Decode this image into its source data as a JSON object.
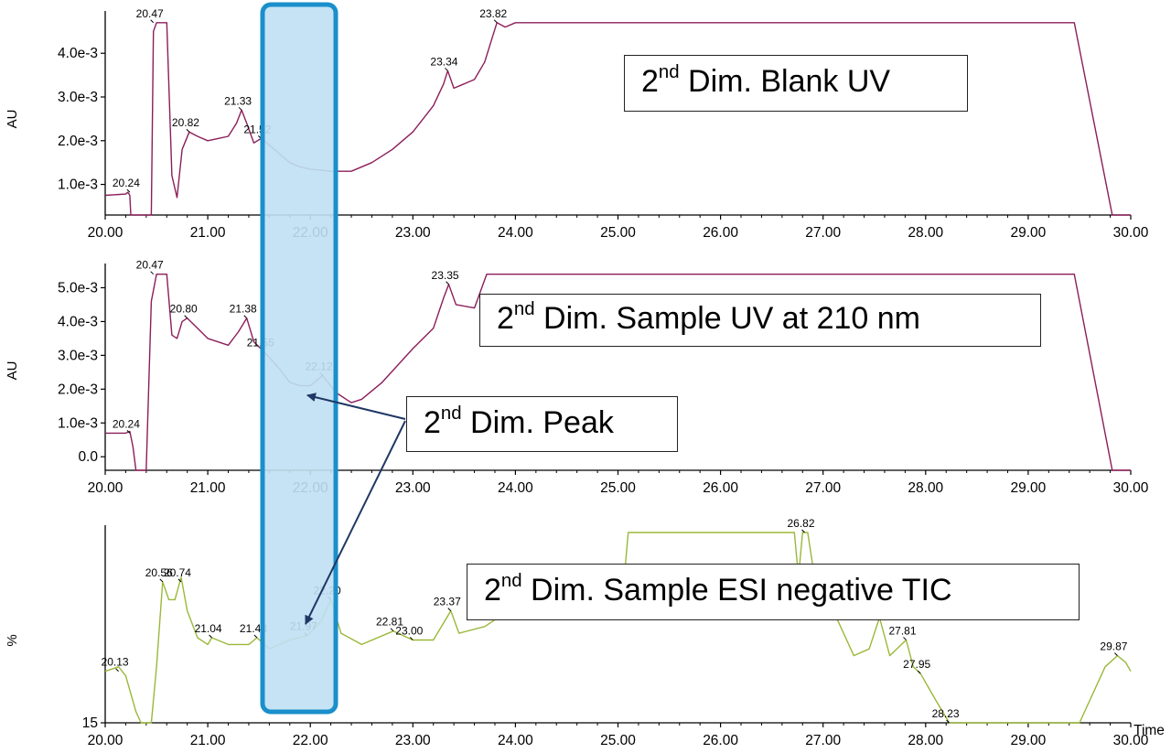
{
  "chart_data": [
    {
      "type": "line",
      "ylabel": "AU",
      "xlim": [
        20.0,
        30.0
      ],
      "ylim": [
        0.0003,
        0.0048
      ],
      "x_ticks": [
        "20.00",
        "21.00",
        "22.00",
        "23.00",
        "24.00",
        "25.00",
        "26.00",
        "27.00",
        "28.00",
        "29.00",
        "30.00"
      ],
      "y_ticks": [
        {
          "value": 0.001,
          "label": "1.0e-3"
        },
        {
          "value": 0.002,
          "label": "2.0e-3"
        },
        {
          "value": 0.003,
          "label": "3.0e-3"
        },
        {
          "value": 0.004,
          "label": "4.0e-3"
        }
      ],
      "title_box": {
        "pre": "2",
        "sup": "nd",
        "post": " Dim. Blank UV"
      },
      "color": "#8b1e5a",
      "peak_labels": [
        {
          "x": 20.24,
          "y": 0.00082,
          "label": "20.24"
        },
        {
          "x": 20.47,
          "y": 0.0047,
          "label": "20.47"
        },
        {
          "x": 20.82,
          "y": 0.0022,
          "label": "20.82"
        },
        {
          "x": 21.33,
          "y": 0.0027,
          "label": "21.33"
        },
        {
          "x": 21.52,
          "y": 0.00205,
          "label": "21.52"
        },
        {
          "x": 23.34,
          "y": 0.0036,
          "label": "23.34"
        },
        {
          "x": 23.82,
          "y": 0.0047,
          "label": "23.82"
        }
      ],
      "points": [
        [
          20.0,
          0.00075
        ],
        [
          20.2,
          0.00078
        ],
        [
          20.22,
          0.00082
        ],
        [
          20.24,
          0.00075
        ],
        [
          20.25,
          0.0003
        ],
        [
          20.45,
          0.0003
        ],
        [
          20.47,
          0.0045
        ],
        [
          20.5,
          0.0047
        ],
        [
          20.55,
          0.0047
        ],
        [
          20.6,
          0.0047
        ],
        [
          20.65,
          0.0012
        ],
        [
          20.7,
          0.0007
        ],
        [
          20.75,
          0.0018
        ],
        [
          20.82,
          0.0022
        ],
        [
          20.9,
          0.0021
        ],
        [
          21.0,
          0.002
        ],
        [
          21.1,
          0.00205
        ],
        [
          21.2,
          0.0021
        ],
        [
          21.28,
          0.0024
        ],
        [
          21.33,
          0.0027
        ],
        [
          21.38,
          0.0024
        ],
        [
          21.45,
          0.00195
        ],
        [
          21.52,
          0.00205
        ],
        [
          21.6,
          0.0019
        ],
        [
          21.7,
          0.0017
        ],
        [
          21.8,
          0.0015
        ],
        [
          21.9,
          0.0014
        ],
        [
          22.0,
          0.00135
        ],
        [
          22.2,
          0.0013
        ],
        [
          22.4,
          0.0013
        ],
        [
          22.6,
          0.0015
        ],
        [
          22.8,
          0.0018
        ],
        [
          23.0,
          0.0022
        ],
        [
          23.2,
          0.0028
        ],
        [
          23.3,
          0.0033
        ],
        [
          23.34,
          0.0036
        ],
        [
          23.4,
          0.0032
        ],
        [
          23.5,
          0.0033
        ],
        [
          23.6,
          0.0034
        ],
        [
          23.7,
          0.0038
        ],
        [
          23.78,
          0.0044
        ],
        [
          23.82,
          0.0047
        ],
        [
          23.9,
          0.0046
        ],
        [
          24.0,
          0.0047
        ],
        [
          29.45,
          0.0047
        ],
        [
          29.82,
          0.0003
        ],
        [
          30.0,
          0.0003
        ]
      ]
    },
    {
      "type": "line",
      "ylabel": "AU",
      "xlim": [
        20.0,
        30.0
      ],
      "ylim": [
        -0.0004,
        0.0055
      ],
      "x_ticks": [
        "20.00",
        "21.00",
        "22.00",
        "23.00",
        "24.00",
        "25.00",
        "26.00",
        "27.00",
        "28.00",
        "29.00",
        "30.00"
      ],
      "y_ticks": [
        {
          "value": 0.0,
          "label": "0.0"
        },
        {
          "value": 0.001,
          "label": "1.0e-3"
        },
        {
          "value": 0.002,
          "label": "2.0e-3"
        },
        {
          "value": 0.003,
          "label": "3.0e-3"
        },
        {
          "value": 0.004,
          "label": "4.0e-3"
        },
        {
          "value": 0.005,
          "label": "5.0e-3"
        }
      ],
      "title_box": {
        "pre": "2",
        "sup": "nd",
        "post": " Dim. Sample UV at 210 nm"
      },
      "color": "#8b1e5a",
      "peak_labels": [
        {
          "x": 20.24,
          "y": 0.0007,
          "label": "20.24"
        },
        {
          "x": 20.47,
          "y": 0.0054,
          "label": "20.47"
        },
        {
          "x": 20.8,
          "y": 0.0041,
          "label": "20.80"
        },
        {
          "x": 21.38,
          "y": 0.0041,
          "label": "21.38"
        },
        {
          "x": 21.55,
          "y": 0.0031,
          "label": "21.55"
        },
        {
          "x": 22.12,
          "y": 0.0024,
          "label": "22.12"
        },
        {
          "x": 23.35,
          "y": 0.0051,
          "label": "23.35"
        }
      ],
      "points": [
        [
          20.0,
          0.0007
        ],
        [
          20.2,
          0.0007
        ],
        [
          20.24,
          0.00075
        ],
        [
          20.27,
          0.0003
        ],
        [
          20.3,
          -0.0004
        ],
        [
          20.4,
          -0.0004
        ],
        [
          20.45,
          0.0046
        ],
        [
          20.5,
          0.0054
        ],
        [
          20.6,
          0.0054
        ],
        [
          20.65,
          0.0036
        ],
        [
          20.7,
          0.0035
        ],
        [
          20.75,
          0.004
        ],
        [
          20.8,
          0.0041
        ],
        [
          20.9,
          0.0038
        ],
        [
          21.0,
          0.0035
        ],
        [
          21.2,
          0.0033
        ],
        [
          21.3,
          0.0037
        ],
        [
          21.38,
          0.0041
        ],
        [
          21.45,
          0.0034
        ],
        [
          21.55,
          0.0031
        ],
        [
          21.7,
          0.0026
        ],
        [
          21.8,
          0.0022
        ],
        [
          21.9,
          0.0021
        ],
        [
          22.0,
          0.0021
        ],
        [
          22.12,
          0.0024
        ],
        [
          22.25,
          0.0019
        ],
        [
          22.4,
          0.0016
        ],
        [
          22.5,
          0.0017
        ],
        [
          22.7,
          0.0022
        ],
        [
          23.0,
          0.0032
        ],
        [
          23.2,
          0.0038
        ],
        [
          23.3,
          0.0047
        ],
        [
          23.35,
          0.0051
        ],
        [
          23.42,
          0.0045
        ],
        [
          23.6,
          0.0044
        ],
        [
          23.72,
          0.0054
        ],
        [
          29.45,
          0.0054
        ],
        [
          29.82,
          -0.0004
        ],
        [
          30.0,
          -0.0004
        ]
      ]
    },
    {
      "type": "line",
      "ylabel": "%",
      "xlabel": "Time",
      "xlim": [
        20.0,
        30.0
      ],
      "ylim": [
        15,
        100
      ],
      "x_ticks": [
        "20.00",
        "21.00",
        "22.00",
        "23.00",
        "24.00",
        "25.00",
        "26.00",
        "27.00",
        "28.00",
        "29.00",
        "30.00"
      ],
      "y_ticks": [
        {
          "value": 15,
          "label": "15"
        }
      ],
      "title_box": {
        "pre": "2",
        "sup": "nd",
        "post": " Dim. Sample ESI negative TIC"
      },
      "color": "#9ab83a",
      "peak_labels": [
        {
          "x": 20.13,
          "y": 38,
          "label": "20.13"
        },
        {
          "x": 20.56,
          "y": 78,
          "label": "20.56"
        },
        {
          "x": 20.74,
          "y": 78,
          "label": "20.74"
        },
        {
          "x": 21.04,
          "y": 53,
          "label": "21.04"
        },
        {
          "x": 21.48,
          "y": 53,
          "label": "21.48"
        },
        {
          "x": 21.97,
          "y": 54,
          "label": "21.97"
        },
        {
          "x": 22.2,
          "y": 70,
          "label": "22.20"
        },
        {
          "x": 22.81,
          "y": 56,
          "label": "22.81"
        },
        {
          "x": 23.0,
          "y": 52,
          "label": "23.00"
        },
        {
          "x": 23.37,
          "y": 65,
          "label": "23.37"
        },
        {
          "x": 26.82,
          "y": 100,
          "label": "26.82"
        },
        {
          "x": 27.81,
          "y": 52,
          "label": "27.81"
        },
        {
          "x": 27.95,
          "y": 37,
          "label": "27.95"
        },
        {
          "x": 28.23,
          "y": 15,
          "label": "28.23"
        },
        {
          "x": 29.87,
          "y": 45,
          "label": "29.87"
        }
      ],
      "points": [
        [
          20.0,
          38
        ],
        [
          20.13,
          40
        ],
        [
          20.2,
          36
        ],
        [
          20.3,
          20
        ],
        [
          20.35,
          15
        ],
        [
          20.45,
          15
        ],
        [
          20.5,
          40
        ],
        [
          20.56,
          78
        ],
        [
          20.62,
          70
        ],
        [
          20.68,
          70
        ],
        [
          20.74,
          80
        ],
        [
          20.8,
          65
        ],
        [
          20.9,
          53
        ],
        [
          21.0,
          50
        ],
        [
          21.04,
          53
        ],
        [
          21.2,
          50
        ],
        [
          21.4,
          50
        ],
        [
          21.48,
          53
        ],
        [
          21.6,
          48
        ],
        [
          21.8,
          52
        ],
        [
          21.97,
          54
        ],
        [
          22.1,
          60
        ],
        [
          22.2,
          70
        ],
        [
          22.3,
          55
        ],
        [
          22.5,
          50
        ],
        [
          22.81,
          56
        ],
        [
          23.0,
          52
        ],
        [
          23.2,
          52
        ],
        [
          23.37,
          65
        ],
        [
          23.45,
          55
        ],
        [
          23.7,
          58
        ],
        [
          23.9,
          64
        ],
        [
          24.1,
          72
        ],
        [
          24.4,
          68
        ],
        [
          24.8,
          72
        ],
        [
          25.05,
          74
        ],
        [
          25.1,
          100
        ],
        [
          26.72,
          100
        ],
        [
          26.76,
          80
        ],
        [
          26.8,
          100
        ],
        [
          26.85,
          100
        ],
        [
          26.9,
          85
        ],
        [
          27.1,
          65
        ],
        [
          27.3,
          45
        ],
        [
          27.45,
          48
        ],
        [
          27.55,
          62
        ],
        [
          27.65,
          45
        ],
        [
          27.81,
          52
        ],
        [
          27.88,
          40
        ],
        [
          27.95,
          37
        ],
        [
          28.1,
          25
        ],
        [
          28.23,
          15
        ],
        [
          29.5,
          15
        ],
        [
          29.6,
          25
        ],
        [
          29.75,
          40
        ],
        [
          29.87,
          45
        ],
        [
          29.95,
          42
        ],
        [
          30.0,
          38
        ]
      ]
    }
  ],
  "arrow_label_box": {
    "pre": "2",
    "sup": "nd",
    "post": " Dim. Peak"
  }
}
